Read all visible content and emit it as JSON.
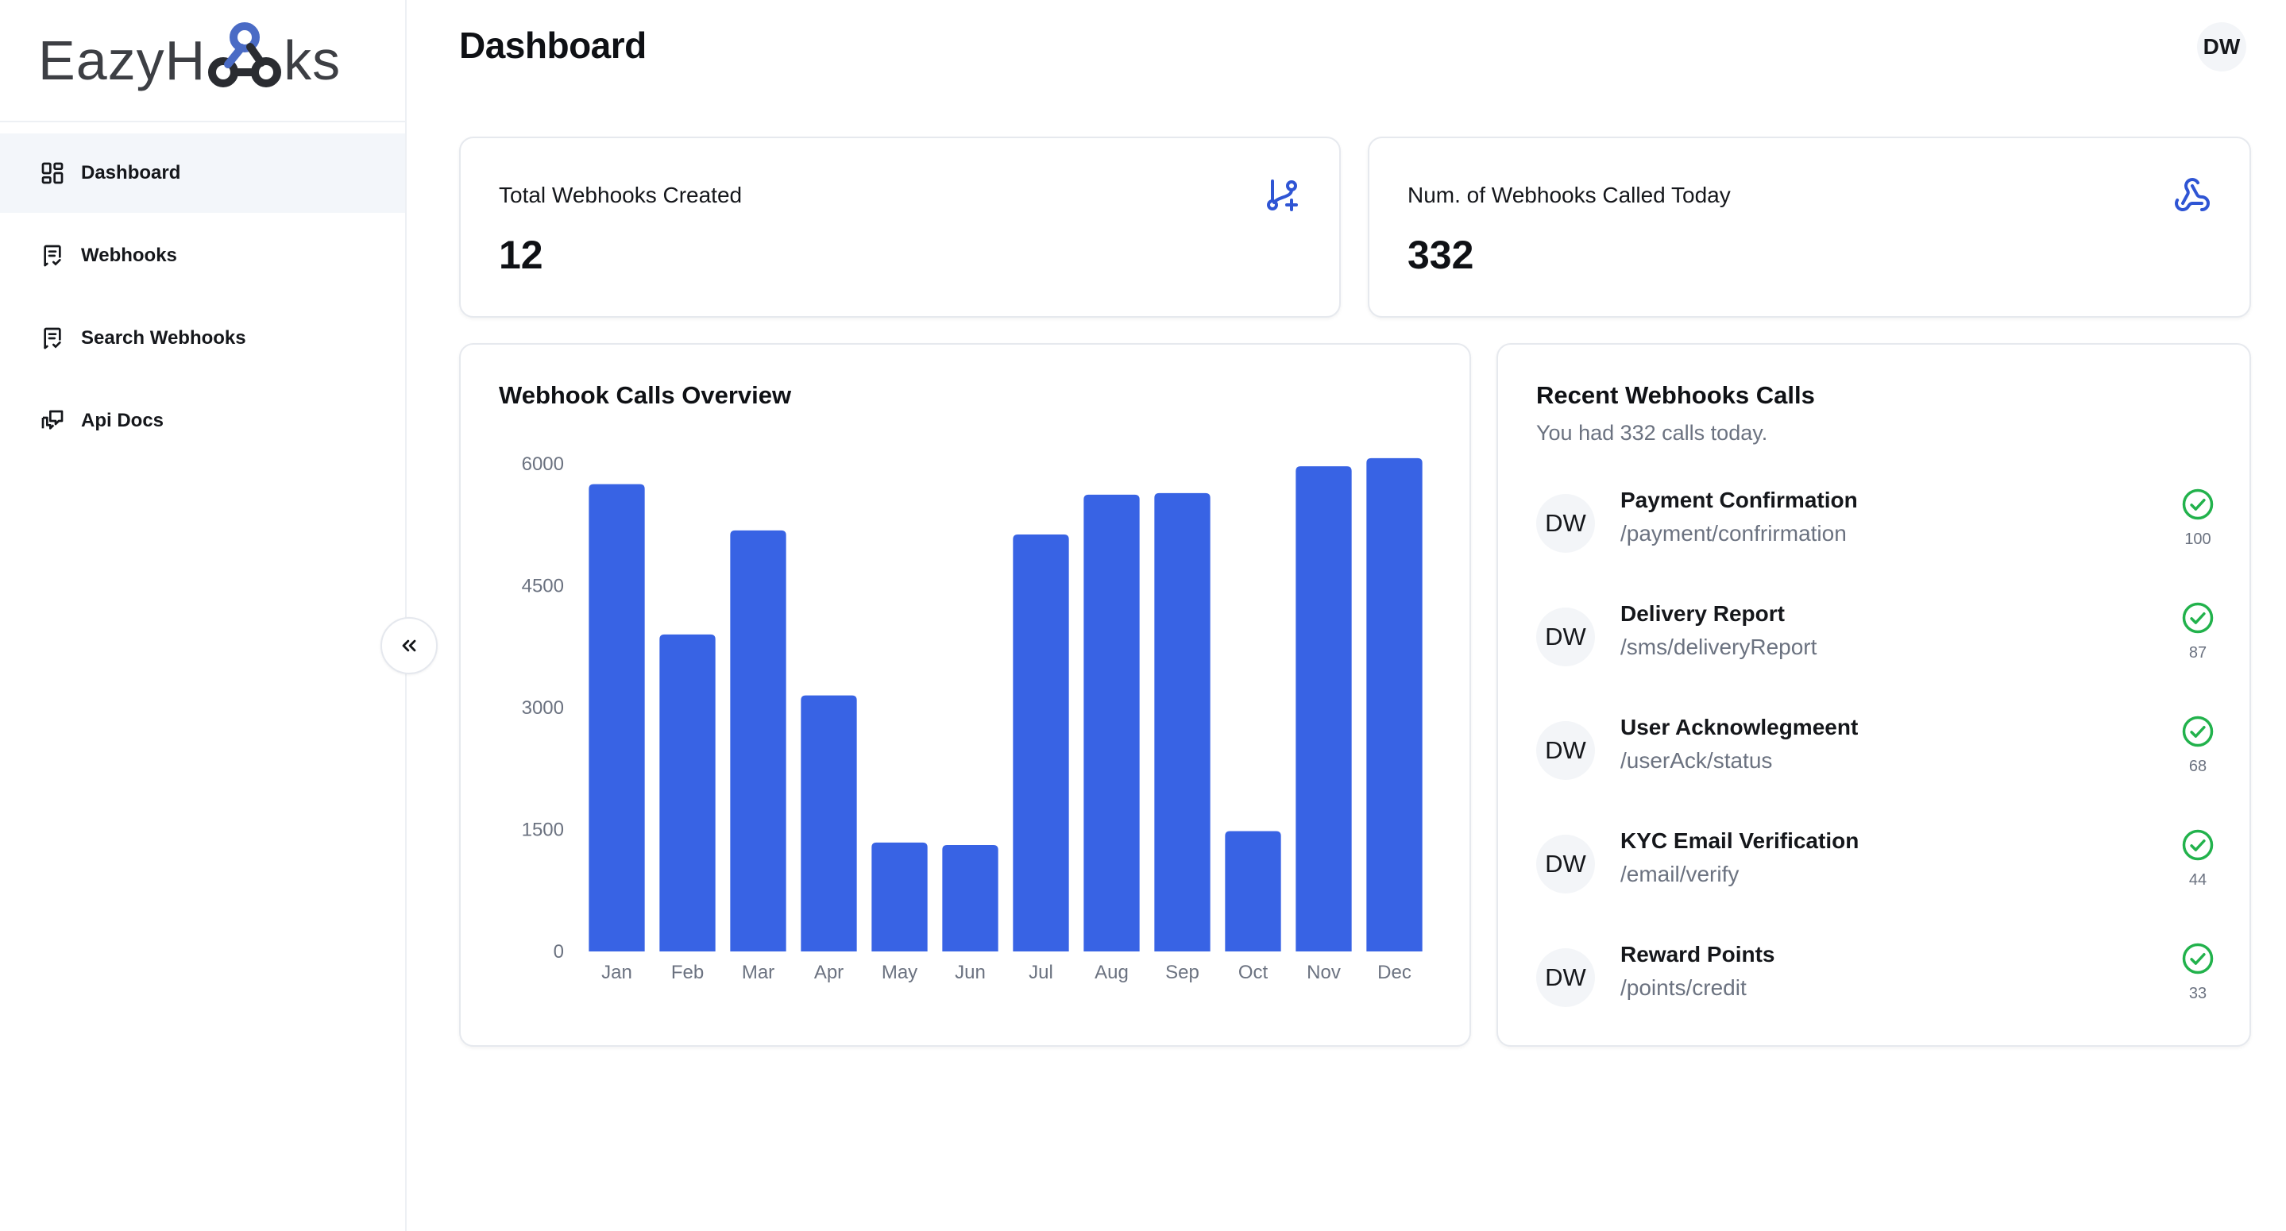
{
  "app": {
    "logo_text_left": "EazyH",
    "logo_text_right": "ks"
  },
  "sidebar": {
    "items": [
      {
        "label": "Dashboard",
        "icon": "dashboard-grid-icon",
        "active": true
      },
      {
        "label": "Webhooks",
        "icon": "receipt-icon",
        "active": false
      },
      {
        "label": "Search Webhooks",
        "icon": "receipt-icon",
        "active": false
      },
      {
        "label": "Api Docs",
        "icon": "chat-bubbles-icon",
        "active": false
      }
    ],
    "collapse_icon": "chevrons-left-icon"
  },
  "header": {
    "title": "Dashboard",
    "avatar_initials": "DW"
  },
  "stats": [
    {
      "label": "Total Webhooks Created",
      "value": "12",
      "icon": "git-branch-plus-icon"
    },
    {
      "label": "Num. of Webhooks Called Today",
      "value": "332",
      "icon": "webhook-icon"
    }
  ],
  "chart_data": {
    "type": "bar",
    "title": "Webhook Calls Overview",
    "categories": [
      "Jan",
      "Feb",
      "Mar",
      "Apr",
      "May",
      "Jun",
      "Jul",
      "Aug",
      "Sep",
      "Oct",
      "Nov",
      "Dec"
    ],
    "values": [
      5750,
      3900,
      5180,
      3150,
      1340,
      1310,
      5130,
      5620,
      5640,
      1480,
      5970,
      6070
    ],
    "yticks": [
      0,
      1500,
      3000,
      4500,
      6000
    ],
    "ylim": [
      0,
      6000
    ],
    "color": "#3863e4",
    "grid": false
  },
  "recent": {
    "title": "Recent Webhooks Calls",
    "subtitle": "You had 332 calls today.",
    "items": [
      {
        "initials": "DW",
        "name": "Payment Confirmation",
        "path": "/payment/confrirmation",
        "count": "100"
      },
      {
        "initials": "DW",
        "name": "Delivery Report",
        "path": "/sms/deliveryReport",
        "count": "87"
      },
      {
        "initials": "DW",
        "name": "User Acknowlegmeent",
        "path": "/userAck/status",
        "count": "68"
      },
      {
        "initials": "DW",
        "name": "KYC Email Verification",
        "path": "/email/verify",
        "count": "44"
      },
      {
        "initials": "DW",
        "name": "Reward Points",
        "path": "/points/credit",
        "count": "33"
      }
    ],
    "status_icon": "check-circle-icon",
    "status_color": "#22b24c"
  },
  "colors": {
    "brand_blue": "#3863e4",
    "accent_blue": "#2f55d4",
    "success": "#22b24c"
  }
}
